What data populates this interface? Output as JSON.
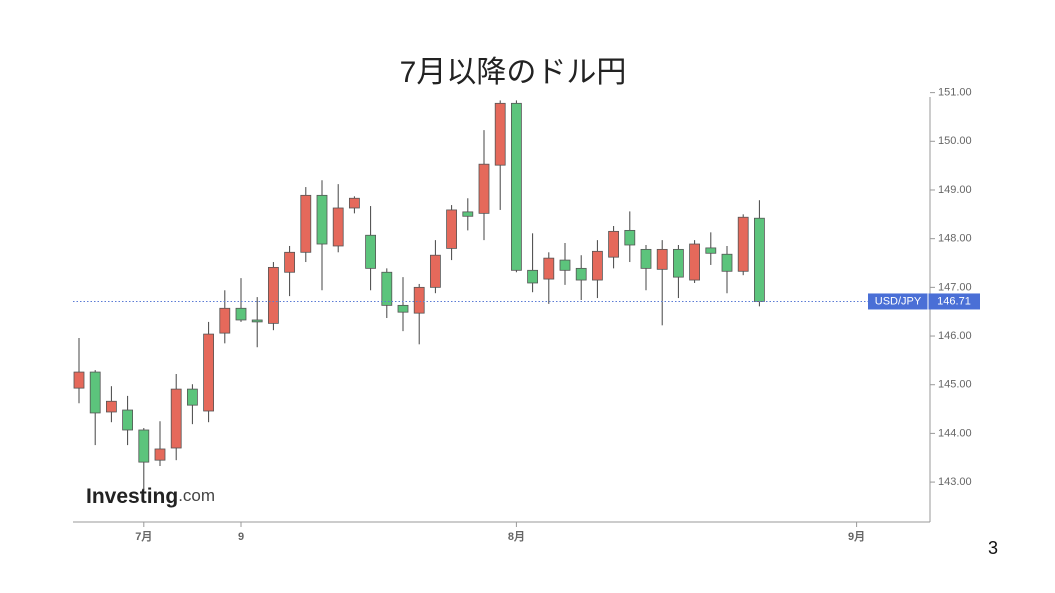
{
  "chart_data": {
    "type": "candlestick",
    "title": "7月以降のドル円",
    "categories": [
      null,
      null,
      null,
      null,
      "7月",
      null,
      null,
      null,
      null,
      null,
      "9",
      null,
      null,
      null,
      null,
      null,
      null,
      null,
      null,
      null,
      null,
      null,
      null,
      null,
      null,
      null,
      null,
      "8月",
      null,
      null,
      null,
      null,
      null,
      null,
      null,
      null,
      null,
      null,
      null,
      null,
      null,
      null,
      null,
      null,
      null,
      null,
      null,
      null,
      "9月"
    ],
    "open": [
      144.93,
      145.26,
      144.44,
      144.48,
      144.07,
      143.45,
      143.7,
      144.91,
      144.46,
      146.06,
      146.57,
      146.33,
      146.26,
      147.31,
      147.72,
      148.89,
      147.85,
      148.63,
      148.07,
      147.31,
      146.63,
      146.47,
      147.0,
      147.8,
      148.55,
      148.52,
      149.51,
      150.78,
      147.35,
      147.17,
      147.56,
      147.39,
      147.15,
      147.62,
      148.17,
      147.78,
      147.37,
      147.78,
      147.15,
      147.81,
      147.68,
      147.33,
      148.42,
      null,
      null,
      null,
      null,
      null,
      null
    ],
    "high": [
      145.96,
      145.3,
      144.97,
      144.77,
      144.11,
      144.25,
      145.22,
      145.01,
      146.29,
      146.94,
      147.19,
      146.8,
      147.52,
      147.85,
      149.06,
      149.2,
      149.12,
      148.87,
      148.67,
      147.39,
      147.21,
      147.07,
      147.97,
      148.69,
      148.83,
      150.23,
      150.84,
      150.84,
      148.11,
      147.72,
      147.91,
      147.66,
      147.97,
      148.26,
      148.56,
      147.87,
      147.97,
      147.87,
      147.97,
      148.13,
      147.85,
      148.5,
      148.79,
      null,
      null,
      null,
      null,
      null,
      null
    ],
    "low": [
      144.62,
      143.76,
      144.23,
      143.76,
      142.84,
      143.33,
      143.45,
      144.19,
      144.23,
      145.85,
      146.29,
      145.77,
      146.12,
      146.82,
      147.52,
      146.94,
      147.72,
      148.52,
      146.94,
      146.37,
      146.1,
      145.83,
      146.88,
      147.56,
      148.17,
      147.97,
      148.59,
      147.31,
      146.9,
      146.66,
      147.05,
      146.74,
      146.78,
      147.39,
      147.52,
      146.94,
      146.22,
      146.78,
      147.09,
      147.46,
      146.88,
      147.25,
      146.61,
      null,
      null,
      null,
      null,
      null,
      null
    ],
    "close": [
      145.26,
      144.42,
      144.66,
      144.07,
      143.41,
      143.68,
      144.91,
      144.58,
      146.04,
      146.57,
      146.33,
      146.29,
      147.41,
      147.72,
      148.89,
      147.89,
      148.63,
      148.83,
      147.39,
      146.63,
      146.49,
      147.0,
      147.66,
      148.59,
      148.46,
      149.53,
      150.78,
      147.35,
      147.09,
      147.6,
      147.35,
      147.15,
      147.74,
      148.15,
      147.87,
      147.39,
      147.78,
      147.21,
      147.89,
      147.7,
      147.33,
      148.44,
      146.71,
      null,
      null,
      null,
      null,
      null,
      null
    ],
    "up_color": "#e5695b",
    "down_color": "#5cc47c",
    "ylim": [
      142.18,
      150.91
    ],
    "yticks": [
      {
        "value": 143,
        "label": "143.00"
      },
      {
        "value": 144,
        "label": "144.00"
      },
      {
        "value": 145,
        "label": "145.00"
      },
      {
        "value": 146,
        "label": "146.00"
      },
      {
        "value": 147,
        "label": "147.00"
      },
      {
        "value": 148,
        "label": "148.00"
      },
      {
        "value": 149,
        "label": "149.00"
      },
      {
        "value": 150,
        "label": "150.00"
      },
      {
        "value": 151,
        "label": "151.00"
      }
    ],
    "symbol": "USD/JPY",
    "current_price": 146.71,
    "watermark": "Investing",
    "watermark_suffix": ".com"
  },
  "page_number": "3"
}
